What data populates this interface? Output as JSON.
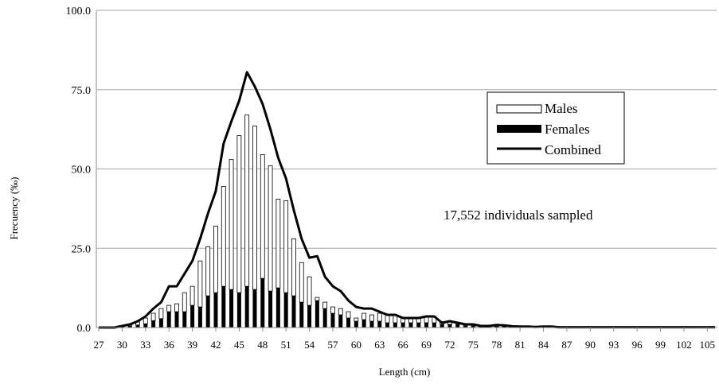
{
  "chart_data": {
    "type": "bar",
    "xlabel": "Length (cm)",
    "ylabel": "Frecuency  (‰)",
    "ylim": [
      0,
      100
    ],
    "y_ticks": [
      "0.0",
      "25.0",
      "50.0",
      "75.0",
      "100.0"
    ],
    "x_tick_labels": [
      "27",
      "30",
      "33",
      "36",
      "39",
      "42",
      "45",
      "48",
      "51",
      "54",
      "57",
      "60",
      "63",
      "66",
      "69",
      "72",
      "75",
      "78",
      "81",
      "84",
      "87",
      "90",
      "93",
      "96",
      "99",
      "102",
      "105"
    ],
    "grid": true,
    "legend_position": "upper-right",
    "stacked": true,
    "annotation": "17,552  individuals sampled",
    "x": [
      27,
      28,
      29,
      30,
      31,
      32,
      33,
      34,
      35,
      36,
      37,
      38,
      39,
      40,
      41,
      42,
      43,
      44,
      45,
      46,
      47,
      48,
      49,
      50,
      51,
      52,
      53,
      54,
      55,
      56,
      57,
      58,
      59,
      60,
      61,
      62,
      63,
      64,
      65,
      66,
      67,
      68,
      69,
      70,
      71,
      72,
      73,
      74,
      75,
      76,
      77,
      78,
      79,
      80,
      81,
      82,
      83,
      84,
      85,
      86,
      87,
      88,
      89,
      90,
      91,
      92,
      93,
      94,
      95,
      96,
      97,
      98,
      99,
      100,
      101,
      102,
      103,
      104,
      105,
      106
    ],
    "series": [
      {
        "name": "Females",
        "kind": "bar",
        "color": "#000000",
        "values": [
          0,
          0,
          0,
          0.3,
          0.5,
          0.8,
          1.2,
          2.2,
          2.8,
          5.0,
          5.0,
          5.0,
          7.0,
          6.5,
          10.0,
          11.0,
          13.0,
          12.0,
          11.0,
          13.0,
          12.0,
          15.5,
          11.5,
          12.5,
          11.0,
          10.0,
          8.0,
          7.0,
          8.5,
          6.0,
          4.5,
          4.0,
          3.0,
          2.0,
          2.5,
          2.0,
          2.0,
          1.5,
          1.5,
          1.5,
          1.5,
          1.5,
          1.5,
          1.5,
          1.0,
          1.0,
          1.0,
          0.5,
          0.5,
          0.3,
          0.3,
          0.3,
          0.3,
          0.2,
          0.2,
          0.2,
          0.2,
          0.2,
          0.2,
          0.1,
          0.1,
          0.1,
          0.1,
          0.1,
          0.1,
          0.1,
          0.1,
          0.1,
          0.1,
          0.1,
          0.1,
          0.1,
          0.1,
          0.1,
          0.1,
          0.1,
          0.1,
          0.1,
          0.1,
          0.1
        ]
      },
      {
        "name": "Males",
        "kind": "bar",
        "color": "#ffffff",
        "values": [
          0,
          0,
          0,
          0.2,
          0.5,
          1.0,
          1.8,
          2.3,
          3.2,
          2.0,
          2.5,
          6.0,
          6.0,
          14.5,
          15.5,
          21.0,
          31.5,
          41.0,
          49.5,
          54.0,
          51.5,
          39.0,
          39.5,
          28.0,
          29.0,
          18.0,
          12.5,
          9.0,
          1.0,
          2.0,
          2.0,
          2.0,
          2.0,
          1.0,
          2.0,
          2.0,
          2.5,
          2.5,
          2.5,
          1.5,
          1.5,
          1.5,
          2.0,
          2.0,
          0.8,
          0.8,
          0.5,
          0.3,
          0.5,
          0.2,
          0.3,
          0.5,
          0.4,
          0.2,
          0.1,
          0.1,
          0,
          0.1,
          0.1,
          0,
          0,
          0,
          0,
          0,
          0,
          0,
          0,
          0,
          0,
          0,
          0,
          0,
          0,
          0,
          0,
          0,
          0,
          0,
          0,
          0
        ]
      },
      {
        "name": "Combined",
        "kind": "line",
        "color": "#000000",
        "values": [
          0,
          0,
          0,
          0.5,
          1.0,
          2.0,
          3.5,
          6.0,
          8.0,
          13.0,
          13.0,
          17.0,
          21.0,
          28.0,
          36.0,
          43.0,
          58.0,
          65.0,
          71.5,
          80.5,
          76.0,
          70.5,
          62.5,
          53.5,
          47.0,
          37.0,
          28.0,
          22.0,
          22.5,
          16.0,
          13.0,
          11.5,
          8.5,
          6.5,
          6.0,
          6.0,
          5.0,
          4.0,
          4.0,
          3.0,
          3.0,
          3.0,
          3.5,
          3.5,
          1.5,
          2.0,
          1.5,
          1.0,
          1.0,
          0.5,
          0.5,
          0.8,
          0.7,
          0.4,
          0.3,
          0.3,
          0.2,
          0.3,
          0.3,
          0.1,
          0.1,
          0.1,
          0.1,
          0.1,
          0.1,
          0.1,
          0.1,
          0.1,
          0.1,
          0.1,
          0.1,
          0.1,
          0.1,
          0.1,
          0.1,
          0.1,
          0.1,
          0.1,
          0.1,
          0.1
        ]
      }
    ]
  }
}
